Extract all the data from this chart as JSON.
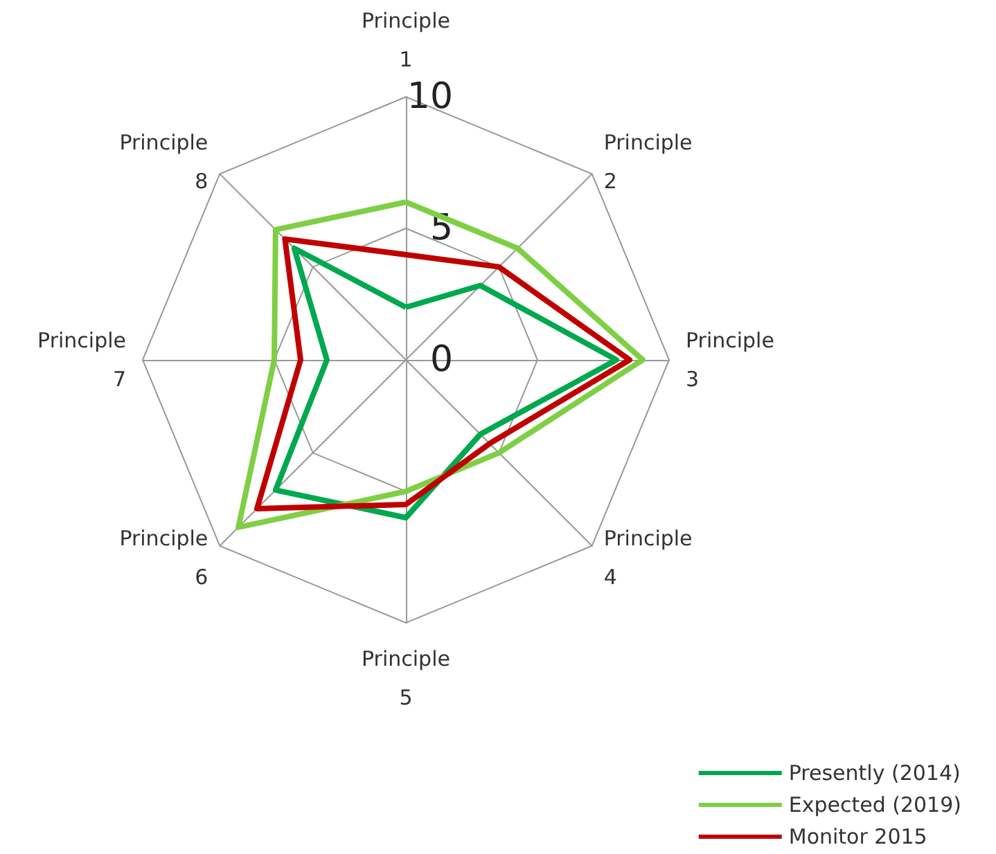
{
  "chart_data": {
    "type": "radar",
    "categories": [
      "Principle 1",
      "Principle 2",
      "Principle 3",
      "Principle 4",
      "Principle 5",
      "Principle 6",
      "Principle 7",
      "Principle 8"
    ],
    "series": [
      {
        "name": "Presently (2014)",
        "color": "#00a84f",
        "values": [
          2,
          4,
          8,
          4,
          6,
          7,
          3,
          6
        ]
      },
      {
        "name": "Expected (2019)",
        "color": "#7fcf45",
        "values": [
          6,
          6,
          9,
          5,
          5,
          9,
          5,
          7
        ]
      },
      {
        "name": "Monitor 2015",
        "color": "#c00000",
        "values": [
          4,
          5,
          8.5,
          4.5,
          5.5,
          8,
          4,
          6.5
        ]
      }
    ],
    "ylim": [
      0,
      10
    ],
    "yticks": [
      0,
      5,
      10
    ],
    "grid": true,
    "legend": "bottom right",
    "marker": "none",
    "line_style": "solid"
  }
}
